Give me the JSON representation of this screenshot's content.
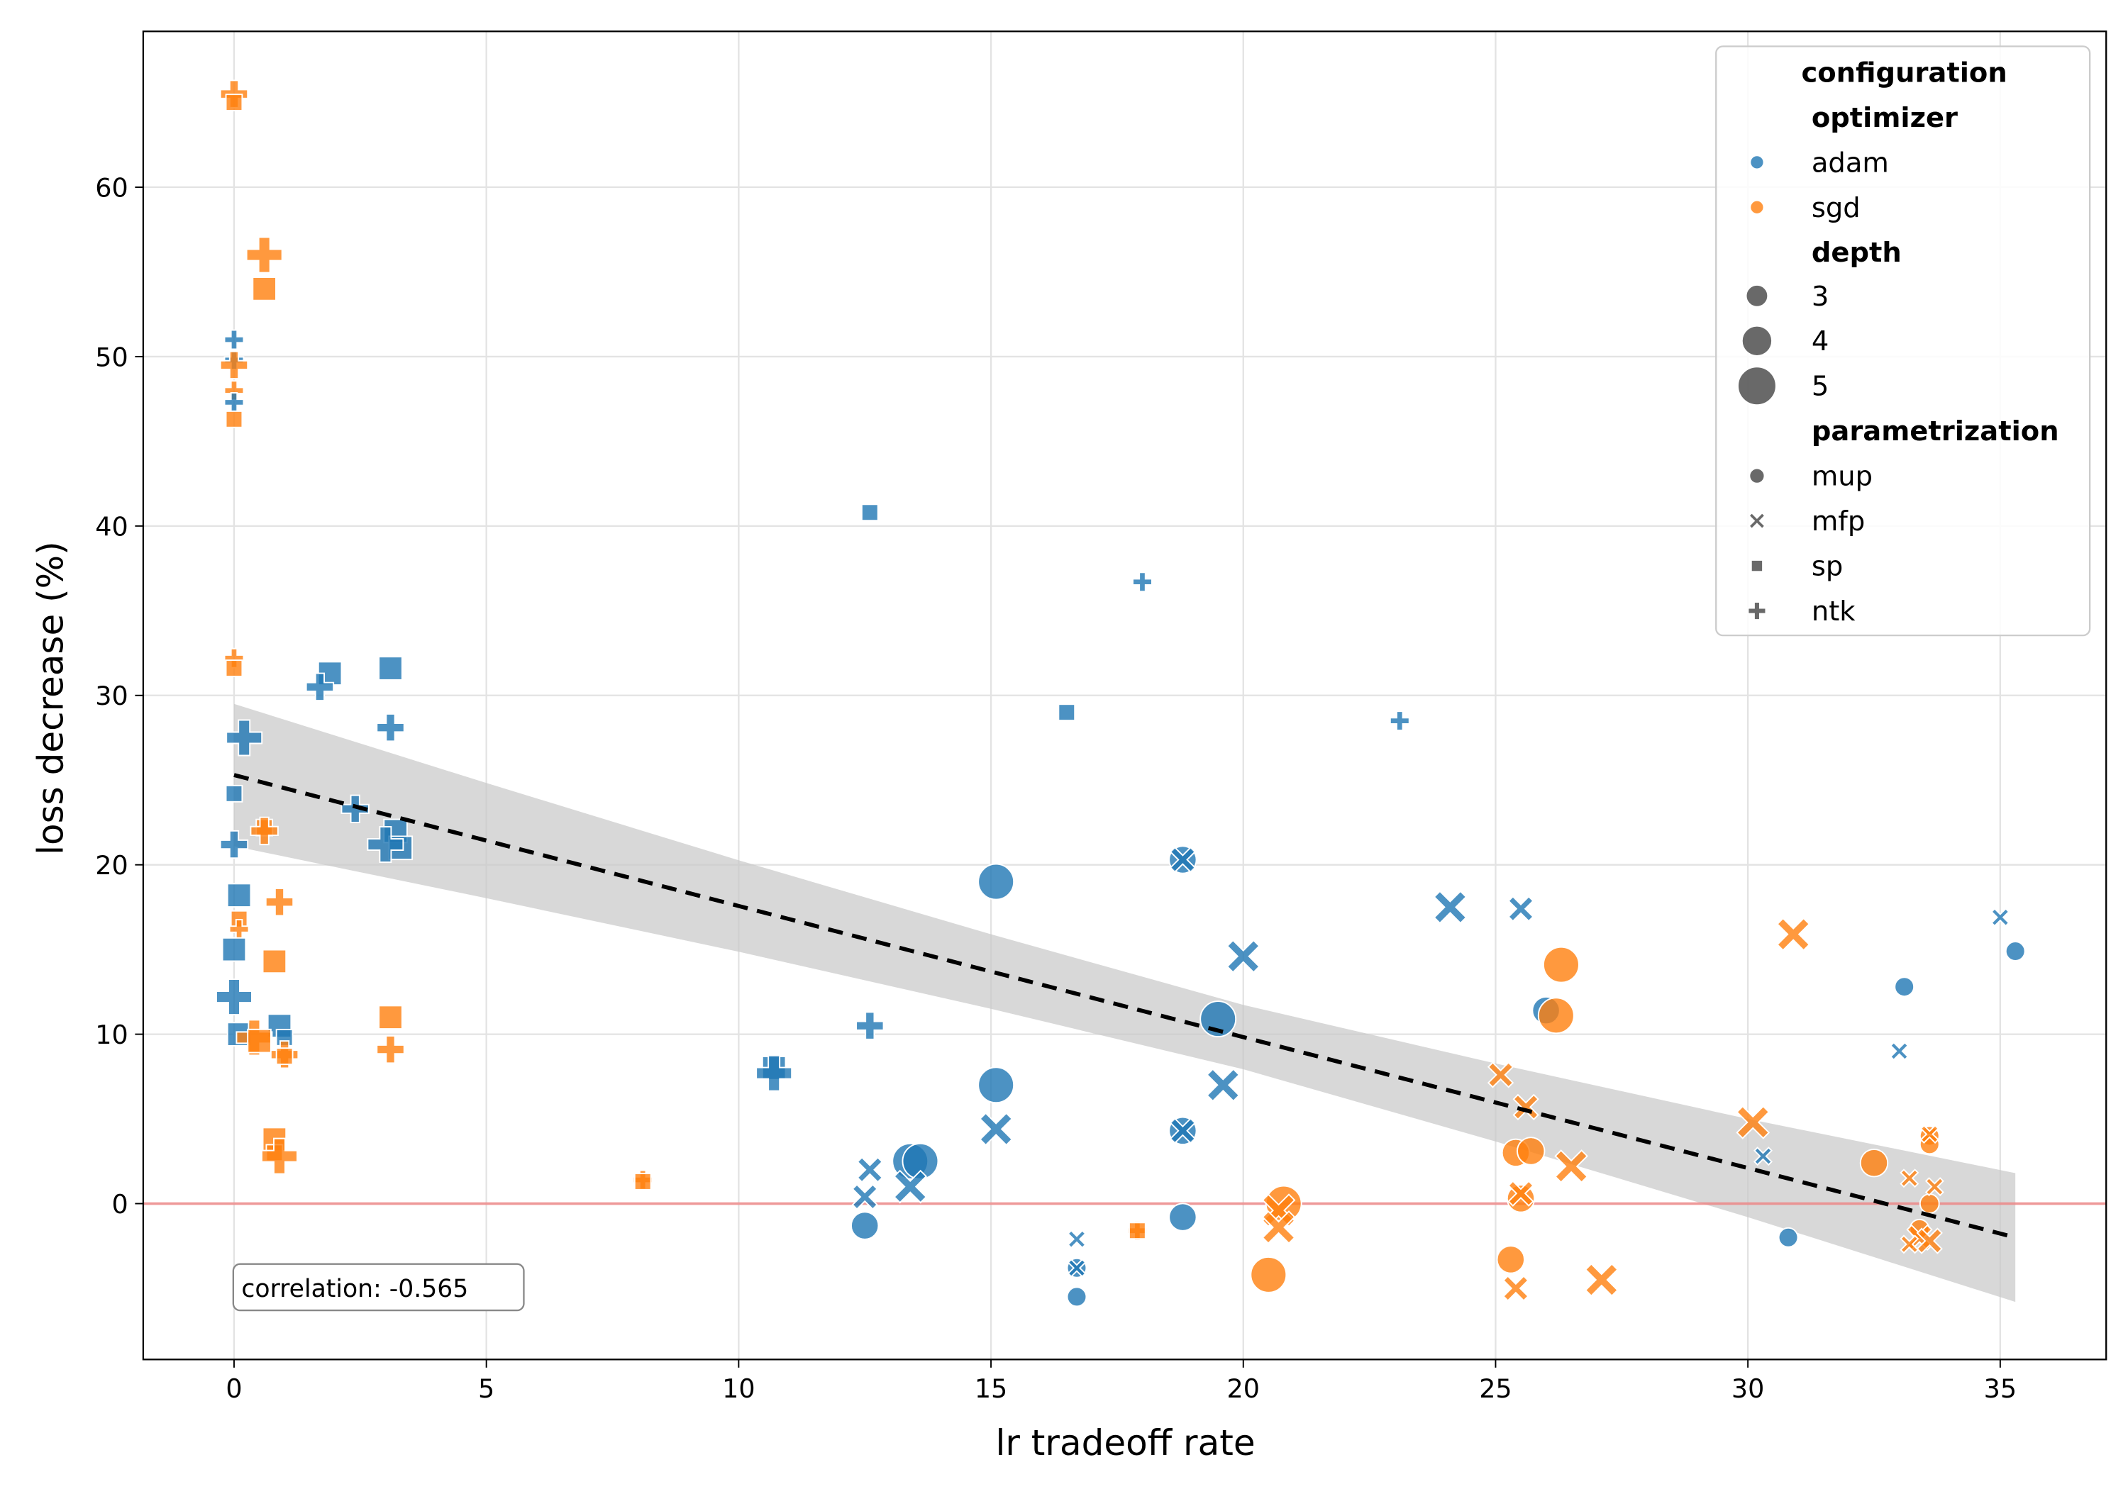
{
  "chart_data": {
    "type": "scatter",
    "xlabel": "lr tradeoff rate",
    "ylabel": "loss decrease (%)",
    "xlim": [
      -1.8,
      37.1
    ],
    "ylim": [
      -9.2,
      69.2
    ],
    "xticks": [
      0,
      5,
      10,
      15,
      20,
      25,
      30,
      35
    ],
    "yticks": [
      0,
      10,
      20,
      30,
      40,
      50,
      60
    ],
    "grid": true,
    "reference_line_y": 0,
    "annotation": "correlation: -0.565",
    "legend": {
      "placement": "top-right",
      "title": "configuration",
      "hue_title": "optimizer",
      "hue": [
        {
          "label": "adam",
          "color": "#1f77b4"
        },
        {
          "label": "sgd",
          "color": "#ff7f0e"
        }
      ],
      "size_title": "depth",
      "sizes": [
        {
          "label": "3"
        },
        {
          "label": "4"
        },
        {
          "label": "5"
        }
      ],
      "style_title": "parametrization",
      "styles": [
        {
          "label": "mup",
          "marker": "circle"
        },
        {
          "label": "mfp",
          "marker": "x"
        },
        {
          "label": "sp",
          "marker": "square"
        },
        {
          "label": "ntk",
          "marker": "plus"
        }
      ]
    },
    "regression": {
      "x": [
        0,
        5,
        10,
        15,
        20,
        25,
        30,
        35.3
      ],
      "y": [
        25.3,
        21.43,
        17.57,
        13.7,
        9.83,
        5.97,
        2.1,
        -2.0
      ],
      "ci_upper": [
        29.5,
        24.83,
        20.27,
        15.9,
        11.73,
        8.27,
        5.0,
        1.8
      ],
      "ci_lower": [
        21.1,
        18.03,
        14.87,
        11.5,
        7.93,
        3.67,
        -0.8,
        -5.8
      ]
    },
    "points": [
      {
        "x": 0,
        "y": 65.5,
        "optimizer": "sgd",
        "depth": 4,
        "param": "ntk"
      },
      {
        "x": 0,
        "y": 65.0,
        "optimizer": "sgd",
        "depth": 3,
        "param": "sp"
      },
      {
        "x": 0.6,
        "y": 56,
        "optimizer": "sgd",
        "depth": 5,
        "param": "ntk"
      },
      {
        "x": 0.6,
        "y": 54,
        "optimizer": "sgd",
        "depth": 4,
        "param": "sp"
      },
      {
        "x": 0,
        "y": 51,
        "optimizer": "adam",
        "depth": 3,
        "param": "ntk"
      },
      {
        "x": 0,
        "y": 49.8,
        "optimizer": "adam",
        "depth": 3,
        "param": "ntk"
      },
      {
        "x": 0,
        "y": 49.5,
        "optimizer": "sgd",
        "depth": 4,
        "param": "ntk"
      },
      {
        "x": 0,
        "y": 48,
        "optimizer": "sgd",
        "depth": 3,
        "param": "ntk"
      },
      {
        "x": 0,
        "y": 47.3,
        "optimizer": "adam",
        "depth": 3,
        "param": "ntk"
      },
      {
        "x": 0,
        "y": 46.3,
        "optimizer": "sgd",
        "depth": 3,
        "param": "sp"
      },
      {
        "x": 0,
        "y": 32.2,
        "optimizer": "sgd",
        "depth": 3,
        "param": "ntk"
      },
      {
        "x": 0,
        "y": 31.6,
        "optimizer": "sgd",
        "depth": 3,
        "param": "sp"
      },
      {
        "x": 1.9,
        "y": 31.3,
        "optimizer": "adam",
        "depth": 4,
        "param": "sp"
      },
      {
        "x": 3.1,
        "y": 31.6,
        "optimizer": "adam",
        "depth": 4,
        "param": "sp"
      },
      {
        "x": 1.7,
        "y": 30.5,
        "optimizer": "adam",
        "depth": 4,
        "param": "ntk"
      },
      {
        "x": 3.1,
        "y": 28.1,
        "optimizer": "adam",
        "depth": 4,
        "param": "ntk"
      },
      {
        "x": 0.2,
        "y": 27.5,
        "optimizer": "adam",
        "depth": 5,
        "param": "ntk"
      },
      {
        "x": 0,
        "y": 24.2,
        "optimizer": "adam",
        "depth": 3,
        "param": "sp"
      },
      {
        "x": 2.4,
        "y": 23.3,
        "optimizer": "adam",
        "depth": 4,
        "param": "ntk"
      },
      {
        "x": 0.6,
        "y": 22.2,
        "optimizer": "sgd",
        "depth": 3,
        "param": "sp"
      },
      {
        "x": 0.6,
        "y": 22,
        "optimizer": "sgd",
        "depth": 4,
        "param": "ntk"
      },
      {
        "x": 3.2,
        "y": 22,
        "optimizer": "adam",
        "depth": 4,
        "param": "sp"
      },
      {
        "x": 3.3,
        "y": 21,
        "optimizer": "adam",
        "depth": 4,
        "param": "sp"
      },
      {
        "x": 3.0,
        "y": 21.2,
        "optimizer": "adam",
        "depth": 5,
        "param": "ntk"
      },
      {
        "x": 0,
        "y": 21.2,
        "optimizer": "adam",
        "depth": 4,
        "param": "ntk"
      },
      {
        "x": 0.1,
        "y": 18.2,
        "optimizer": "adam",
        "depth": 4,
        "param": "sp"
      },
      {
        "x": 0.9,
        "y": 17.8,
        "optimizer": "sgd",
        "depth": 4,
        "param": "ntk"
      },
      {
        "x": 0.1,
        "y": 16.8,
        "optimizer": "sgd",
        "depth": 3,
        "param": "sp"
      },
      {
        "x": 0.1,
        "y": 16.2,
        "optimizer": "sgd",
        "depth": 3,
        "param": "ntk"
      },
      {
        "x": 0,
        "y": 15,
        "optimizer": "adam",
        "depth": 4,
        "param": "sp"
      },
      {
        "x": 0.8,
        "y": 14.3,
        "optimizer": "sgd",
        "depth": 4,
        "param": "sp"
      },
      {
        "x": 0,
        "y": 12.2,
        "optimizer": "adam",
        "depth": 5,
        "param": "ntk"
      },
      {
        "x": 3.1,
        "y": 11,
        "optimizer": "sgd",
        "depth": 4,
        "param": "sp"
      },
      {
        "x": 0.9,
        "y": 10.5,
        "optimizer": "adam",
        "depth": 4,
        "param": "sp"
      },
      {
        "x": 0.1,
        "y": 10,
        "optimizer": "adam",
        "depth": 4,
        "param": "sp"
      },
      {
        "x": 1,
        "y": 9.8,
        "optimizer": "adam",
        "depth": 3,
        "param": "sp"
      },
      {
        "x": 0.4,
        "y": 9.8,
        "optimizer": "sgd",
        "depth": 5,
        "param": "ntk"
      },
      {
        "x": 0.5,
        "y": 9.6,
        "optimizer": "sgd",
        "depth": 4,
        "param": "sp"
      },
      {
        "x": 3.1,
        "y": 9.1,
        "optimizer": "sgd",
        "depth": 4,
        "param": "ntk"
      },
      {
        "x": 1,
        "y": 8.8,
        "optimizer": "sgd",
        "depth": 4,
        "param": "ntk"
      },
      {
        "x": 1,
        "y": 8.7,
        "optimizer": "sgd",
        "depth": 3,
        "param": "sp"
      },
      {
        "x": 0.8,
        "y": 3.8,
        "optimizer": "sgd",
        "depth": 4,
        "param": "sp"
      },
      {
        "x": 0.8,
        "y": 3.0,
        "optimizer": "sgd",
        "depth": 3,
        "param": "sp"
      },
      {
        "x": 0.9,
        "y": 2.8,
        "optimizer": "sgd",
        "depth": 5,
        "param": "ntk"
      },
      {
        "x": 8.1,
        "y": 1.4,
        "optimizer": "sgd",
        "depth": 3,
        "param": "ntk"
      },
      {
        "x": 8.1,
        "y": 1.3,
        "optimizer": "sgd",
        "depth": 3,
        "param": "sp"
      },
      {
        "x": 10.7,
        "y": 8,
        "optimizer": "adam",
        "depth": 4,
        "param": "sp"
      },
      {
        "x": 10.7,
        "y": 7.7,
        "optimizer": "adam",
        "depth": 5,
        "param": "ntk"
      },
      {
        "x": 12.6,
        "y": 10.5,
        "optimizer": "adam",
        "depth": 4,
        "param": "ntk"
      },
      {
        "x": 12.6,
        "y": 40.8,
        "optimizer": "adam",
        "depth": 3,
        "param": "sp"
      },
      {
        "x": 16.5,
        "y": 29,
        "optimizer": "adam",
        "depth": 3,
        "param": "sp"
      },
      {
        "x": 18,
        "y": 36.7,
        "optimizer": "adam",
        "depth": 3,
        "param": "ntk"
      },
      {
        "x": 23.1,
        "y": 28.5,
        "optimizer": "adam",
        "depth": 3,
        "param": "ntk"
      },
      {
        "x": 17.9,
        "y": -1.6,
        "optimizer": "sgd",
        "depth": 3,
        "param": "ntk"
      },
      {
        "x": 17.9,
        "y": -1.6,
        "optimizer": "sgd",
        "depth": 3,
        "param": "sp"
      },
      {
        "x": 15.1,
        "y": 19,
        "optimizer": "adam",
        "depth": 5,
        "param": "mup"
      },
      {
        "x": 15.1,
        "y": 7,
        "optimizer": "adam",
        "depth": 5,
        "param": "mup"
      },
      {
        "x": 13.4,
        "y": 2.5,
        "optimizer": "adam",
        "depth": 5,
        "param": "mup"
      },
      {
        "x": 13.6,
        "y": 2.5,
        "optimizer": "adam",
        "depth": 5,
        "param": "mup"
      },
      {
        "x": 12.5,
        "y": -1.3,
        "optimizer": "adam",
        "depth": 4,
        "param": "mup"
      },
      {
        "x": 16.7,
        "y": -5.5,
        "optimizer": "adam",
        "depth": 3,
        "param": "mup"
      },
      {
        "x": 16.7,
        "y": -3.8,
        "optimizer": "adam",
        "depth": 3,
        "param": "mup"
      },
      {
        "x": 18.8,
        "y": -0.8,
        "optimizer": "adam",
        "depth": 4,
        "param": "mup"
      },
      {
        "x": 18.8,
        "y": 20.3,
        "optimizer": "adam",
        "depth": 4,
        "param": "mup"
      },
      {
        "x": 18.8,
        "y": 4.3,
        "optimizer": "adam",
        "depth": 4,
        "param": "mup"
      },
      {
        "x": 19.5,
        "y": 10.9,
        "optimizer": "adam",
        "depth": 5,
        "param": "mup"
      },
      {
        "x": 26,
        "y": 11.4,
        "optimizer": "adam",
        "depth": 4,
        "param": "mup"
      },
      {
        "x": 30.8,
        "y": -2,
        "optimizer": "adam",
        "depth": 3,
        "param": "mup"
      },
      {
        "x": 33.1,
        "y": 12.8,
        "optimizer": "adam",
        "depth": 3,
        "param": "mup"
      },
      {
        "x": 35.3,
        "y": 14.9,
        "optimizer": "adam",
        "depth": 3,
        "param": "mup"
      },
      {
        "x": 12.6,
        "y": 2,
        "optimizer": "adam",
        "depth": 4,
        "param": "mfp"
      },
      {
        "x": 12.5,
        "y": 0.4,
        "optimizer": "adam",
        "depth": 4,
        "param": "mfp"
      },
      {
        "x": 13.4,
        "y": 1,
        "optimizer": "adam",
        "depth": 5,
        "param": "mfp"
      },
      {
        "x": 15.1,
        "y": 4.4,
        "optimizer": "adam",
        "depth": 5,
        "param": "mfp"
      },
      {
        "x": 16.7,
        "y": -2.1,
        "optimizer": "adam",
        "depth": 3,
        "param": "mfp"
      },
      {
        "x": 16.7,
        "y": -3.8,
        "optimizer": "adam",
        "depth": 3,
        "param": "mfp"
      },
      {
        "x": 18.8,
        "y": 20.3,
        "optimizer": "adam",
        "depth": 4,
        "param": "mfp"
      },
      {
        "x": 18.8,
        "y": 4.3,
        "optimizer": "adam",
        "depth": 4,
        "param": "mfp"
      },
      {
        "x": 19.6,
        "y": 7,
        "optimizer": "adam",
        "depth": 5,
        "param": "mfp"
      },
      {
        "x": 20,
        "y": 14.6,
        "optimizer": "adam",
        "depth": 5,
        "param": "mfp"
      },
      {
        "x": 24.1,
        "y": 17.5,
        "optimizer": "adam",
        "depth": 5,
        "param": "mfp"
      },
      {
        "x": 25.5,
        "y": 17.4,
        "optimizer": "adam",
        "depth": 4,
        "param": "mfp"
      },
      {
        "x": 30.3,
        "y": 2.8,
        "optimizer": "adam",
        "depth": 3,
        "param": "mfp"
      },
      {
        "x": 33,
        "y": 9,
        "optimizer": "adam",
        "depth": 3,
        "param": "mfp"
      },
      {
        "x": 35,
        "y": 16.9,
        "optimizer": "adam",
        "depth": 3,
        "param": "mfp"
      },
      {
        "x": 20.8,
        "y": 0,
        "optimizer": "sgd",
        "depth": 5,
        "param": "mup"
      },
      {
        "x": 20.5,
        "y": -4.2,
        "optimizer": "sgd",
        "depth": 5,
        "param": "mup"
      },
      {
        "x": 26.3,
        "y": 14.1,
        "optimizer": "sgd",
        "depth": 5,
        "param": "mup"
      },
      {
        "x": 26.2,
        "y": 11.1,
        "optimizer": "sgd",
        "depth": 5,
        "param": "mup"
      },
      {
        "x": 25.4,
        "y": 3,
        "optimizer": "sgd",
        "depth": 4,
        "param": "mup"
      },
      {
        "x": 25.7,
        "y": 3.1,
        "optimizer": "sgd",
        "depth": 4,
        "param": "mup"
      },
      {
        "x": 25.5,
        "y": 0.3,
        "optimizer": "sgd",
        "depth": 4,
        "param": "mup"
      },
      {
        "x": 25.3,
        "y": -3.3,
        "optimizer": "sgd",
        "depth": 4,
        "param": "mup"
      },
      {
        "x": 32.5,
        "y": 2.4,
        "optimizer": "sgd",
        "depth": 4,
        "param": "mup"
      },
      {
        "x": 33.6,
        "y": 4,
        "optimizer": "sgd",
        "depth": 3,
        "param": "mup"
      },
      {
        "x": 33.6,
        "y": 3.5,
        "optimizer": "sgd",
        "depth": 3,
        "param": "mup"
      },
      {
        "x": 33.6,
        "y": 0,
        "optimizer": "sgd",
        "depth": 3,
        "param": "mup"
      },
      {
        "x": 33.4,
        "y": -1.5,
        "optimizer": "sgd",
        "depth": 3,
        "param": "mup"
      },
      {
        "x": 20.7,
        "y": -0.4,
        "optimizer": "sgd",
        "depth": 5,
        "param": "mfp"
      },
      {
        "x": 20.7,
        "y": -1.4,
        "optimizer": "sgd",
        "depth": 5,
        "param": "mfp"
      },
      {
        "x": 25.1,
        "y": 7.6,
        "optimizer": "sgd",
        "depth": 4,
        "param": "mfp"
      },
      {
        "x": 25.6,
        "y": 5.7,
        "optimizer": "sgd",
        "depth": 4,
        "param": "mfp"
      },
      {
        "x": 26.5,
        "y": 2.2,
        "optimizer": "sgd",
        "depth": 5,
        "param": "mfp"
      },
      {
        "x": 25.5,
        "y": 0.6,
        "optimizer": "sgd",
        "depth": 4,
        "param": "mfp"
      },
      {
        "x": 25.4,
        "y": -5,
        "optimizer": "sgd",
        "depth": 4,
        "param": "mfp"
      },
      {
        "x": 27.1,
        "y": -4.5,
        "optimizer": "sgd",
        "depth": 5,
        "param": "mfp"
      },
      {
        "x": 30.1,
        "y": 4.8,
        "optimizer": "sgd",
        "depth": 5,
        "param": "mfp"
      },
      {
        "x": 30.9,
        "y": 15.9,
        "optimizer": "sgd",
        "depth": 5,
        "param": "mfp"
      },
      {
        "x": 33.6,
        "y": 4.1,
        "optimizer": "sgd",
        "depth": 3,
        "param": "mfp"
      },
      {
        "x": 33.2,
        "y": 1.5,
        "optimizer": "sgd",
        "depth": 3,
        "param": "mfp"
      },
      {
        "x": 33.7,
        "y": 1,
        "optimizer": "sgd",
        "depth": 3,
        "param": "mfp"
      },
      {
        "x": 33.4,
        "y": -2,
        "optimizer": "sgd",
        "depth": 4,
        "param": "mfp"
      },
      {
        "x": 33.6,
        "y": -2.2,
        "optimizer": "sgd",
        "depth": 4,
        "param": "mfp"
      },
      {
        "x": 33.2,
        "y": -2.4,
        "optimizer": "sgd",
        "depth": 3,
        "param": "mfp"
      }
    ]
  }
}
